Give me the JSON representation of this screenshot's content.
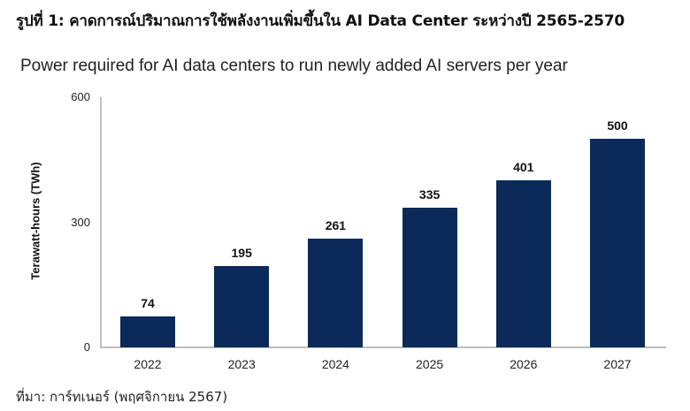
{
  "figure": {
    "caption": "รูปที่ 1: คาดการณ์ปริมาณการใช้พลังงานเพิ่มขึ้นใน AI Data Center ระหว่างปี 2565-2570",
    "source": "ที่มา: การ์ทเนอร์ (พฤศจิกายน 2567)"
  },
  "chart_data": {
    "type": "bar",
    "title": "Power required for AI data centers to run newly added AI servers per year",
    "xlabel": "",
    "ylabel": "Terawatt-hours (TWh)",
    "categories": [
      "2022",
      "2023",
      "2024",
      "2025",
      "2026",
      "2027"
    ],
    "values": [
      74,
      195,
      261,
      335,
      401,
      500
    ],
    "data_labels": [
      "74",
      "195",
      "261",
      "335",
      "401",
      "500"
    ],
    "yticks": [
      "0",
      "300",
      "600"
    ],
    "ylim": [
      0,
      600
    ],
    "grid": false,
    "legend": null,
    "bar_color": "#0b2a5a"
  }
}
